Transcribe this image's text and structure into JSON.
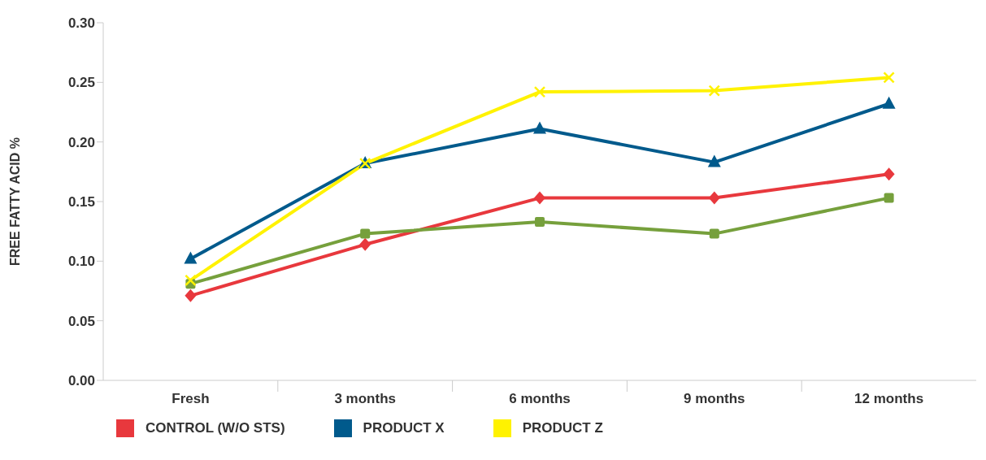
{
  "chart_data": {
    "type": "line",
    "ylabel": "FREE FATTY ACID %",
    "categories": [
      "Fresh",
      "3 months",
      "6 months",
      "9 months",
      "12 months"
    ],
    "series": [
      {
        "name": "CONTROL (W/O STS)",
        "color": "#e8383d",
        "marker": "diamond",
        "values": [
          0.071,
          0.114,
          0.153,
          0.153,
          0.173
        ]
      },
      {
        "color": "#76a03c",
        "marker": "square",
        "values": [
          0.081,
          0.123,
          0.133,
          0.123,
          0.153
        ]
      },
      {
        "name": "PRODUCT X",
        "color": "#005a8c",
        "marker": "triangle",
        "values": [
          0.102,
          0.182,
          0.211,
          0.183,
          0.232
        ]
      },
      {
        "name": "PRODUCT Z",
        "color": "#fff200",
        "marker": "cross",
        "values": [
          0.084,
          0.182,
          0.242,
          0.243,
          0.254
        ]
      }
    ],
    "ylim": [
      0,
      0.3
    ],
    "yticks": [
      {
        "value": 0,
        "label": "0.00"
      },
      {
        "value": 0.05,
        "label": "0.05"
      },
      {
        "value": 0.1,
        "label": "0.10"
      },
      {
        "value": 0.15,
        "label": "0.15"
      },
      {
        "value": 0.2,
        "label": "0.20"
      },
      {
        "value": 0.25,
        "label": "0.25"
      },
      {
        "value": 0.3,
        "label": "0.30"
      }
    ],
    "grid": false,
    "legend": "bottom"
  }
}
